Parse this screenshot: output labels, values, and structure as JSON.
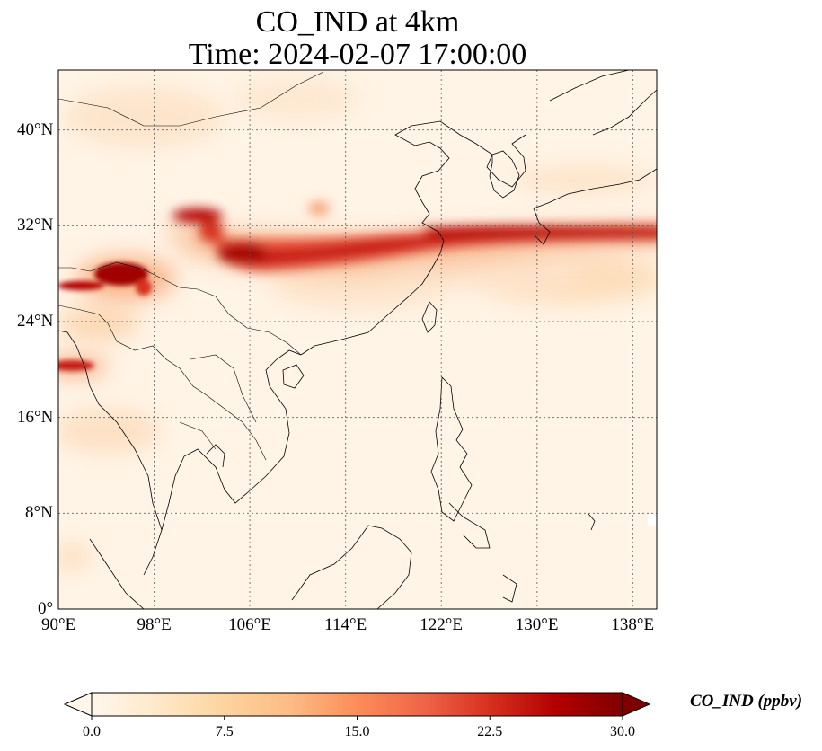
{
  "title_line1": "CO_IND at 4km",
  "title_line2": "Time: 2024-02-07 17:00:00",
  "map": {
    "lon_range": [
      90,
      140
    ],
    "lat_range": [
      0,
      45
    ],
    "lon_ticks": [
      {
        "value": 90,
        "label": "90°E"
      },
      {
        "value": 98,
        "label": "98°E"
      },
      {
        "value": 106,
        "label": "106°E"
      },
      {
        "value": 114,
        "label": "114°E"
      },
      {
        "value": 122,
        "label": "122°E"
      },
      {
        "value": 130,
        "label": "130°E"
      },
      {
        "value": 138,
        "label": "138°E"
      }
    ],
    "lat_ticks": [
      {
        "value": 0,
        "label": "0°"
      },
      {
        "value": 8,
        "label": "8°N"
      },
      {
        "value": 16,
        "label": "16°N"
      },
      {
        "value": 24,
        "label": "24°N"
      },
      {
        "value": 32,
        "label": "32°N"
      },
      {
        "value": 40,
        "label": "40°N"
      }
    ],
    "gridlines": "dotted gray",
    "colormap": "OrRd"
  },
  "colorbar": {
    "label": "CO_IND (ppbv)",
    "min": 0,
    "max": 30,
    "ticks": [
      {
        "value": 0,
        "label": "0.0"
      },
      {
        "value": 7.5,
        "label": "7.5"
      },
      {
        "value": 15,
        "label": "15.0"
      },
      {
        "value": 22.5,
        "label": "22.5"
      },
      {
        "value": 30,
        "label": "30.0"
      }
    ],
    "extend": "both",
    "colors": [
      "#fff7ec",
      "#fee8c8",
      "#fdd49e",
      "#fdbb84",
      "#fc8d59",
      "#ef6548",
      "#d7301f",
      "#b30000",
      "#7f0000"
    ]
  }
}
